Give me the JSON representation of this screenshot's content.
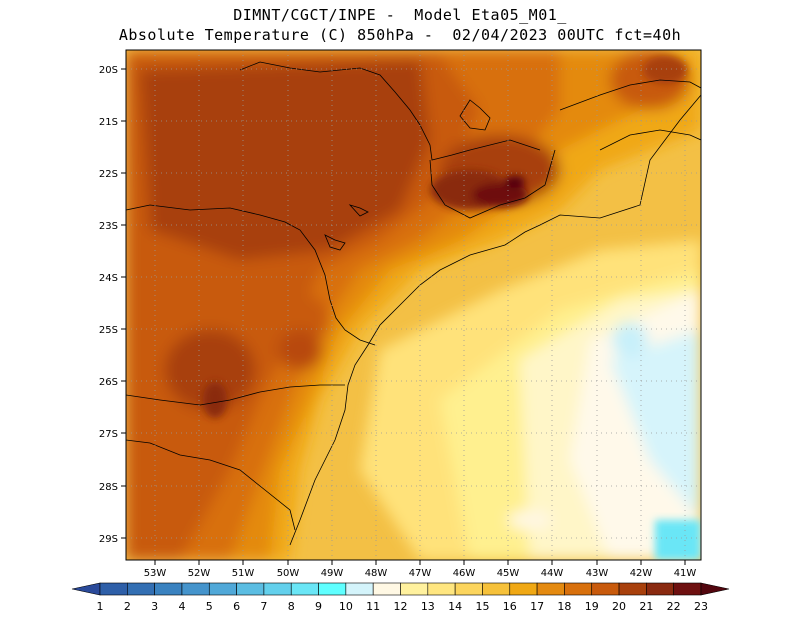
{
  "title": {
    "line1": "DIMNT/CGCT/INPE -  Model Eta05_M01_",
    "line2": "Absolute Temperature (C) 850hPa -  02/04/2023 00UTC fct=40h"
  },
  "map": {
    "lon_labels": [
      "53W",
      "52W",
      "51W",
      "50W",
      "49W",
      "48W",
      "47W",
      "46W",
      "45W",
      "44W",
      "43W",
      "42W",
      "41W"
    ],
    "lat_labels": [
      "20S",
      "21S",
      "22S",
      "23S",
      "24S",
      "25S",
      "26S",
      "27S",
      "28S",
      "29S"
    ]
  },
  "colorbar": {
    "levels": [
      "1",
      "2",
      "3",
      "4",
      "5",
      "6",
      "7",
      "8",
      "9",
      "10",
      "11",
      "12",
      "13",
      "14",
      "15",
      "16",
      "17",
      "18",
      "19",
      "20",
      "21",
      "22",
      "23"
    ],
    "colors": [
      "#2a4a9a",
      "#2e5fa8",
      "#336fb3",
      "#3a82c0",
      "#4594cc",
      "#50a8d8",
      "#5bbde2",
      "#63d0ec",
      "#6ae6f6",
      "#5fffff",
      "#d4f4fb",
      "#fff8e4",
      "#fff19e",
      "#ffe680",
      "#fcd55d",
      "#f6c13a",
      "#f0a814",
      "#e48a10",
      "#d8700c",
      "#c85a0c",
      "#a8400c",
      "#8a2a10",
      "#6e1010",
      "#52060e"
    ]
  }
}
